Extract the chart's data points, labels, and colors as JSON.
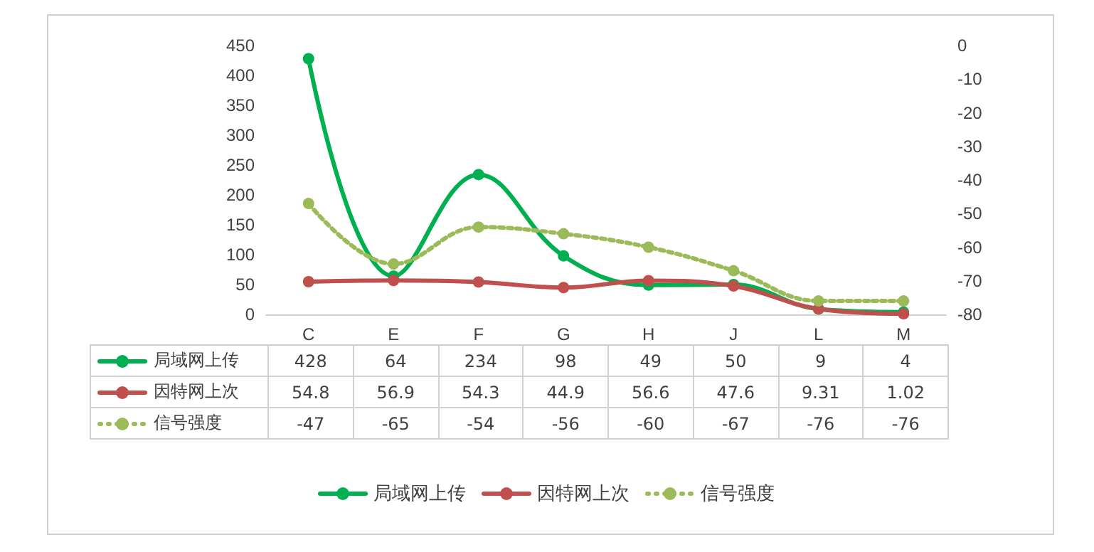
{
  "chart_data": {
    "type": "line",
    "categories": [
      "C",
      "E",
      "F",
      "G",
      "H",
      "J",
      "L",
      "M"
    ],
    "series": [
      {
        "name": "局域网上传",
        "color": "#00b050",
        "values": [
          428,
          64,
          234,
          98,
          49,
          50,
          9,
          4
        ]
      },
      {
        "name": "因特网上次",
        "color": "#c0504d",
        "values": [
          54.8,
          56.9,
          54.3,
          44.9,
          56.6,
          47.6,
          9.31,
          1.02
        ]
      },
      {
        "name": "信号强度",
        "color": "#9bbb59",
        "axis": "y2",
        "line_style": "dotted",
        "values": [
          -47,
          -65,
          -54,
          -56,
          -60,
          -67,
          -76,
          -76
        ]
      }
    ],
    "ylim": [
      0,
      450
    ],
    "yticks": [
      0,
      50,
      100,
      150,
      200,
      250,
      300,
      350,
      400,
      450
    ],
    "y2lim": [
      -80,
      0
    ],
    "y2ticks": [
      -80,
      -70,
      -60,
      -50,
      -40,
      -30,
      -20,
      -10,
      0
    ],
    "marker": "circle",
    "line_style": "solid",
    "legend": "bottom",
    "data_labels": true
  }
}
